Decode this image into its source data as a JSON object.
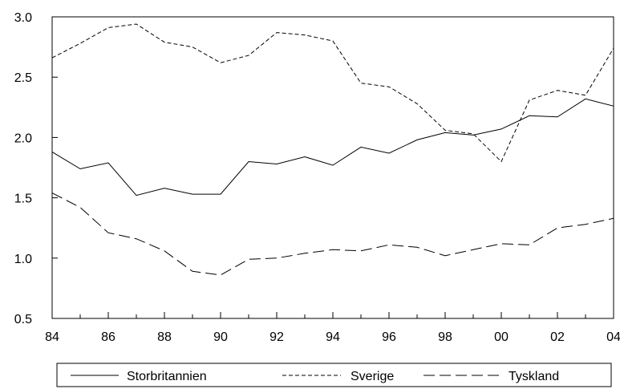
{
  "chart_data": {
    "type": "line",
    "title": "",
    "xlabel": "",
    "ylabel": "",
    "x": [
      1984,
      1985,
      1986,
      1987,
      1988,
      1989,
      1990,
      1991,
      1992,
      1993,
      1994,
      1995,
      1996,
      1997,
      1998,
      1999,
      2000,
      2001,
      2002,
      2003,
      2004
    ],
    "xticks": [
      {
        "value": 1984,
        "label": "84"
      },
      {
        "value": 1986,
        "label": "86"
      },
      {
        "value": 1988,
        "label": "88"
      },
      {
        "value": 1990,
        "label": "90"
      },
      {
        "value": 1992,
        "label": "92"
      },
      {
        "value": 1994,
        "label": "94"
      },
      {
        "value": 1996,
        "label": "96"
      },
      {
        "value": 1998,
        "label": "98"
      },
      {
        "value": 2000,
        "label": "00"
      },
      {
        "value": 2002,
        "label": "02"
      },
      {
        "value": 2004,
        "label": "04"
      }
    ],
    "yticks": [
      {
        "value": 0.5,
        "label": "0.5"
      },
      {
        "value": 1.0,
        "label": "1.0"
      },
      {
        "value": 1.5,
        "label": "1.5"
      },
      {
        "value": 2.0,
        "label": "2.0"
      },
      {
        "value": 2.5,
        "label": "2.5"
      },
      {
        "value": 3.0,
        "label": "3.0"
      }
    ],
    "xlim": [
      1984,
      2004
    ],
    "ylim": [
      0.5,
      3.0
    ],
    "grid": false,
    "legend_position": "bottom",
    "series": [
      {
        "name": "Storbritannien",
        "style": "solid",
        "values": [
          1.88,
          1.74,
          1.79,
          1.52,
          1.58,
          1.53,
          1.53,
          1.8,
          1.78,
          1.84,
          1.77,
          1.92,
          1.87,
          1.98,
          2.04,
          2.02,
          2.07,
          2.18,
          2.17,
          2.32,
          2.26
        ]
      },
      {
        "name": "Sverige",
        "style": "short-dash",
        "values": [
          2.66,
          2.78,
          2.91,
          2.94,
          2.79,
          2.75,
          2.62,
          2.68,
          2.87,
          2.85,
          2.8,
          2.45,
          2.42,
          2.28,
          2.06,
          2.03,
          1.8,
          2.31,
          2.39,
          2.35,
          2.74
        ]
      },
      {
        "name": "Tyskland",
        "style": "long-dash",
        "values": [
          1.54,
          1.42,
          1.21,
          1.16,
          1.06,
          0.89,
          0.86,
          0.99,
          1.0,
          1.04,
          1.07,
          1.06,
          1.11,
          1.09,
          1.02,
          1.07,
          1.12,
          1.11,
          1.25,
          1.28,
          1.33
        ]
      }
    ]
  }
}
